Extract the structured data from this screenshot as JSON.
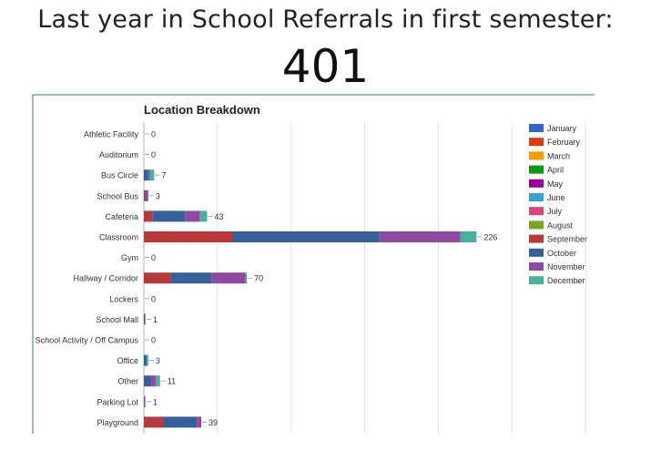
{
  "slide": {
    "title": "Last year in School Referrals in first semester:",
    "total": "401"
  },
  "chart_data": {
    "type": "bar",
    "orientation": "horizontal",
    "stacked": true,
    "title": "Location Breakdown",
    "xlabel": "",
    "ylabel": "",
    "xlim": [
      0,
      300
    ],
    "grid": true,
    "legend_position": "right",
    "categories": [
      "Athletic Facility",
      "Auditorium",
      "Bus Circle",
      "School Bus",
      "Cafeteria",
      "Classroom",
      "Gym",
      "Hallway / Corridor",
      "Lockers",
      "School Mall",
      "School Activity / Off Campus",
      "Office",
      "Other",
      "Parking Lot",
      "Playground"
    ],
    "totals": [
      0,
      0,
      7,
      3,
      43,
      226,
      0,
      70,
      0,
      1,
      0,
      3,
      11,
      1,
      39
    ],
    "series": [
      {
        "name": "January",
        "color": "#3366CC",
        "values": [
          0,
          0,
          0,
          0,
          0,
          0,
          0,
          0,
          0,
          0,
          0,
          0,
          0,
          0,
          0
        ]
      },
      {
        "name": "February",
        "color": "#DC3912",
        "values": [
          0,
          0,
          0,
          0,
          0,
          0,
          0,
          0,
          0,
          0,
          0,
          0,
          0,
          0,
          0
        ]
      },
      {
        "name": "March",
        "color": "#FF9900",
        "values": [
          0,
          0,
          0,
          0,
          0,
          0,
          0,
          0,
          0,
          0,
          0,
          0,
          0,
          0,
          0
        ]
      },
      {
        "name": "April",
        "color": "#109618",
        "values": [
          0,
          0,
          0,
          0,
          0,
          0,
          0,
          0,
          0,
          0,
          0,
          0,
          0,
          0,
          0
        ]
      },
      {
        "name": "May",
        "color": "#990099",
        "values": [
          0,
          0,
          0,
          0,
          0,
          0,
          0,
          0,
          0,
          0,
          0,
          0,
          0,
          0,
          0
        ]
      },
      {
        "name": "June",
        "color": "#3B9FD0",
        "values": [
          0,
          0,
          0,
          0,
          0,
          0,
          0,
          0,
          0,
          0,
          0,
          0,
          0,
          0,
          0
        ]
      },
      {
        "name": "July",
        "color": "#DD4477",
        "values": [
          0,
          0,
          0,
          0,
          0,
          0,
          0,
          0,
          0,
          0,
          0,
          0,
          0,
          0,
          0
        ]
      },
      {
        "name": "August",
        "color": "#7EA32D",
        "values": [
          0,
          0,
          0,
          0,
          0,
          0,
          0,
          0,
          0,
          0,
          0,
          0,
          0,
          0,
          0
        ]
      },
      {
        "name": "September",
        "color": "#B53A3A",
        "values": [
          0,
          0,
          0,
          1,
          6,
          60,
          0,
          18,
          0,
          0,
          0,
          0,
          0,
          0,
          13
        ]
      },
      {
        "name": "October",
        "color": "#36609A",
        "values": [
          0,
          0,
          3,
          1,
          22,
          100,
          0,
          28,
          0,
          1,
          0,
          2,
          5,
          0,
          23
        ]
      },
      {
        "name": "November",
        "color": "#8E4A9E",
        "values": [
          0,
          0,
          1,
          1,
          10,
          55,
          0,
          23,
          0,
          0,
          0,
          0,
          3,
          1,
          3
        ]
      },
      {
        "name": "December",
        "color": "#4FAF9E",
        "values": [
          0,
          0,
          3,
          0,
          5,
          11,
          0,
          1,
          0,
          0,
          0,
          1,
          3,
          0,
          0
        ]
      }
    ]
  }
}
